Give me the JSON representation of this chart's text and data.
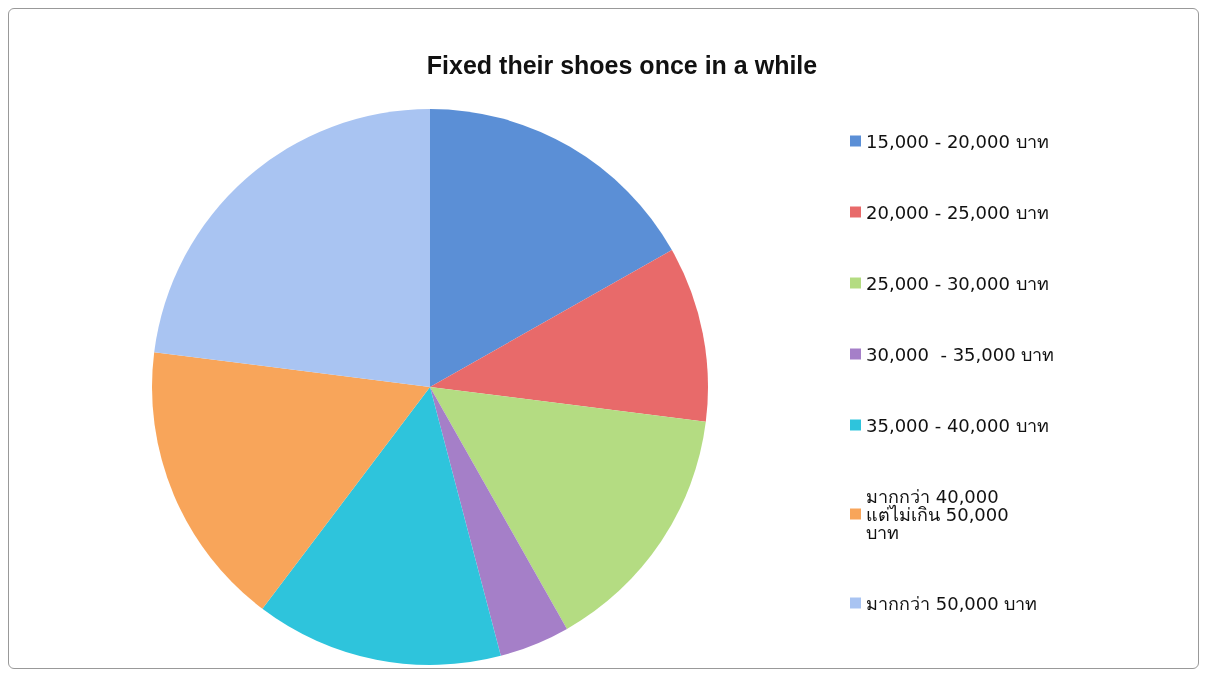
{
  "chart_data": {
    "type": "pie",
    "title": "Fixed their shoes once in a while",
    "categories": [
      "15,000 - 20,000 บาท",
      "20,000 - 25,000 บาท",
      "25,000 - 30,000 บาท",
      "30,000  - 35,000 บาท",
      "35,000 - 40,000 บาท",
      "มากกว่า 40,000 แต่ไม่เกิน 50,000 บาท",
      "มากกว่า 50,000 บาท"
    ],
    "values": [
      16.8,
      10.2,
      14.8,
      4.1,
      14.4,
      16.7,
      23.0
    ],
    "colors": [
      "#5b8fd6",
      "#e86a6a",
      "#b4dc82",
      "#a57fc8",
      "#2ec4dc",
      "#f8a55a",
      "#a9c4f2"
    ],
    "legend": "right"
  }
}
